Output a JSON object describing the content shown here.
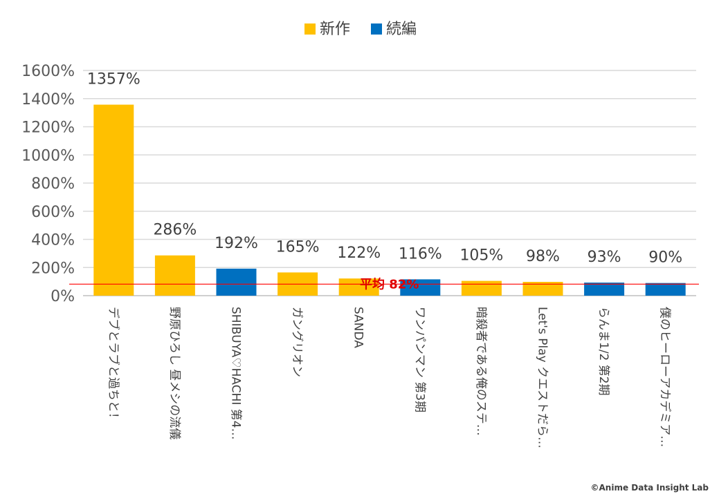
{
  "chart_data": {
    "type": "bar",
    "title": "",
    "xlabel": "",
    "ylabel": "",
    "ylim": [
      0,
      1600
    ],
    "yticks": [
      0,
      200,
      400,
      600,
      800,
      1000,
      1200,
      1400,
      1600
    ],
    "tick_suffix": "%",
    "grid": true,
    "legend_position": "top-center",
    "legend": [
      {
        "name": "新作",
        "color": "#FFC000"
      },
      {
        "name": "続編",
        "color": "#0070C0"
      }
    ],
    "categories": [
      "デブとラブと過ちと！",
      "野原ひろし 昼メシの流儀",
      "SHIBUYA♡HACHI 第4…",
      "ガングリオン",
      "SANDA",
      "ワンパンマン 第3期",
      "暗殺者である俺のステ…",
      "Let's Play クエストだら…",
      "らんま1/2 第2期",
      "僕のヒーローアカデミア…"
    ],
    "values": [
      1357,
      286,
      192,
      165,
      122,
      116,
      105,
      98,
      93,
      90
    ],
    "value_labels": [
      "1357%",
      "286%",
      "192%",
      "165%",
      "122%",
      "116%",
      "105%",
      "98%",
      "93%",
      "90%"
    ],
    "series_type": [
      "新作",
      "新作",
      "続編",
      "新作",
      "新作",
      "続編",
      "新作",
      "新作",
      "続編",
      "続編"
    ],
    "average": {
      "value": 82,
      "label": "平均 82%",
      "color": "#FF0000"
    },
    "credit": "©Anime Data Insight Lab"
  }
}
